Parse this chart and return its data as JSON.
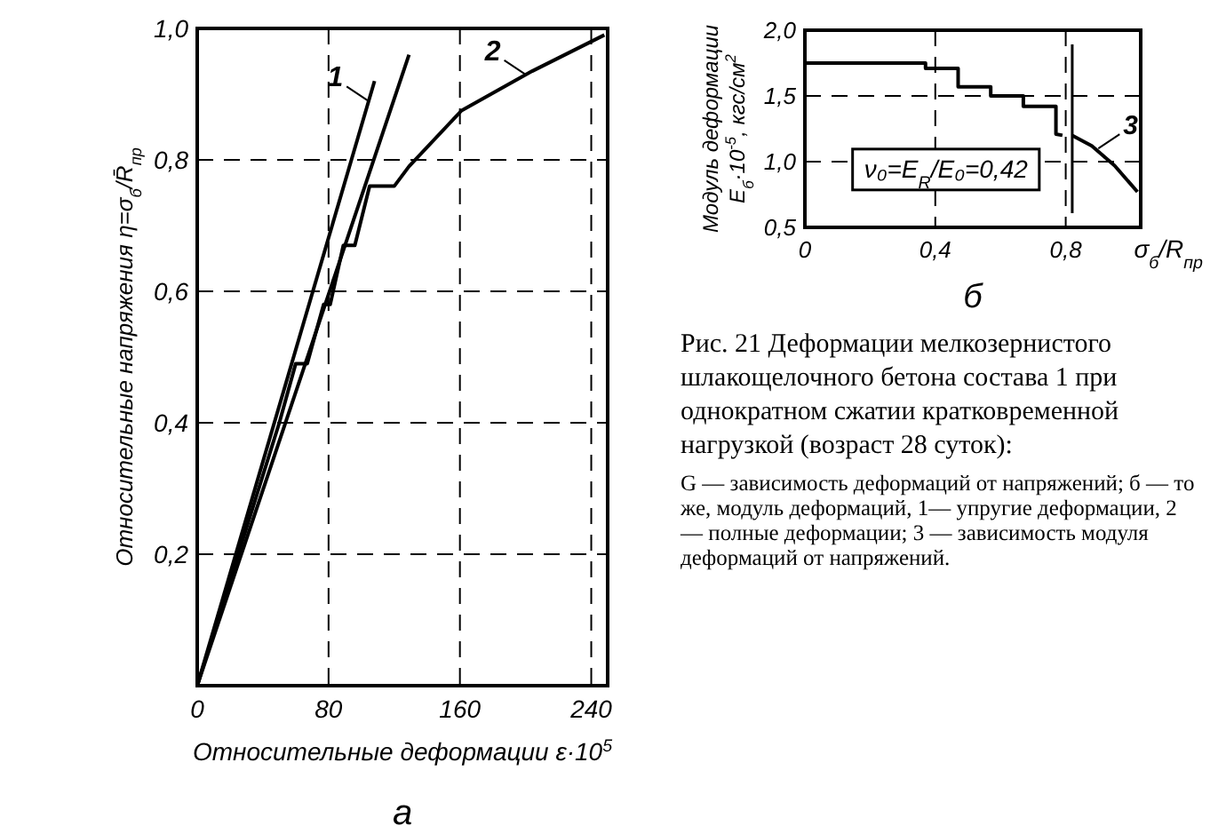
{
  "chart_data": [
    {
      "type": "line",
      "title": "а",
      "xlabel": "Относительные деформации ε·10$^{5}$",
      "ylabel": "Относительные напряжения η=σ$_{б}$/R̄$_{пр}$",
      "xlim": [
        0,
        250
      ],
      "ylim": [
        0,
        1.0
      ],
      "xticks": [
        0,
        80,
        160,
        240
      ],
      "yticks": [
        {
          "value": 0.2,
          "label": "0,2"
        },
        {
          "value": 0.4,
          "label": "0,4"
        },
        {
          "value": 0.6,
          "label": "0,6"
        },
        {
          "value": 0.8,
          "label": "0,8"
        },
        {
          "value": 1.0,
          "label": "1,0"
        }
      ],
      "grid": true,
      "series": [
        {
          "color": "#000000",
          "x": [
            0,
            108
          ],
          "values": [
            0,
            0.92
          ]
        },
        {
          "color": "#000000",
          "x": [
            0,
            129
          ],
          "values": [
            0,
            0.96
          ]
        },
        {
          "color": "#000000",
          "x": [
            0,
            50,
            60,
            67,
            77,
            81,
            89,
            96,
            105,
            120,
            129,
            161,
            204,
            248
          ],
          "values": [
            0,
            0.4,
            0.49,
            0.49,
            0.58,
            0.58,
            0.67,
            0.67,
            0.76,
            0.76,
            0.79,
            0.875,
            0.935,
            0.99
          ]
        }
      ],
      "annotations": [
        {
          "text": "1",
          "x": 104,
          "y": 0.89
        },
        {
          "text": "2",
          "x": 200,
          "y": 0.93
        }
      ]
    },
    {
      "type": "line",
      "title": "б",
      "xlabel": "σ$_{б}$/R$_{пр}$",
      "ylabel": "Модуль деформации E$_{б}$·10$^{-5}$, кгс/см$^{2}$",
      "xlim": [
        0,
        1.03
      ],
      "ylim": [
        0.5,
        2.0
      ],
      "xticks": [
        0,
        {
          "value": 0.4,
          "label": "0,4"
        },
        {
          "value": 0.8,
          "label": "0,8"
        }
      ],
      "yticks": [
        {
          "value": 0.5,
          "label": "0,5"
        },
        {
          "value": 1.0,
          "label": "1,0"
        },
        {
          "value": 1.5,
          "label": "1,5"
        },
        {
          "value": 2.0,
          "label": "2,0"
        }
      ],
      "grid": true,
      "series": [
        {
          "color": "#000000",
          "x": [
            0,
            0.37,
            0.37,
            0.47,
            0.47,
            0.57,
            0.57,
            0.67,
            0.67,
            0.77,
            0.77,
            0.79
          ],
          "values": [
            1.75,
            1.75,
            1.71,
            1.71,
            1.57,
            1.57,
            1.5,
            1.5,
            1.42,
            1.42,
            1.21,
            1.2
          ]
        },
        {
          "color": "#000000",
          "x": [
            0.82,
            0.88,
            0.95,
            1.02
          ],
          "values": [
            1.2,
            1.12,
            0.97,
            0.77
          ]
        }
      ],
      "ref_lines": [
        {
          "axis": "x",
          "value": 0.82
        }
      ],
      "annotations": [
        "ν₀=E$_{R}$/E₀=0,42",
        {
          "text": "3",
          "x": 0.9,
          "y": 1.1
        }
      ]
    },
    {
      "type": "other",
      "title": "Рис. 21 Деформации мелкозернистого шлакощелочного бетона состава 1 при однократном сжатии кратковременной нагрузкой (возраст 28 суток):",
      "annotations": [
        "G — зависимость деформаций от напряжений; б — то же, модуль деформаций, 1— упругие деформации, 2 — полные деформации; 3 — зависимость модуля деформаций от напряжений."
      ]
    }
  ]
}
